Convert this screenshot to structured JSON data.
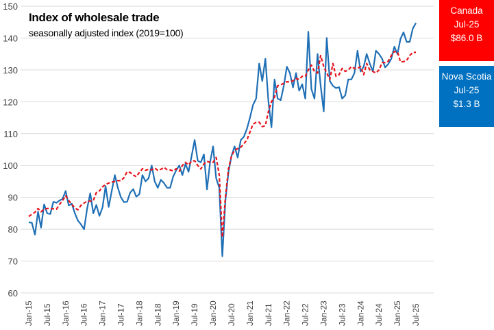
{
  "chart_data": {
    "type": "line",
    "title": "Index of wholesale trade",
    "subtitle": "seasonally adjusted index (2019=100)",
    "xlabel": "",
    "ylabel": "",
    "ylim": [
      60,
      150
    ],
    "yticks": [
      60,
      70,
      80,
      90,
      100,
      110,
      120,
      130,
      140,
      150
    ],
    "grid": true,
    "start_month": "Jan-15",
    "frequency": "monthly",
    "xtick_labels": [
      "Jan-15",
      "Jul-15",
      "Jan-16",
      "Jul-16",
      "Jan-17",
      "Jul-17",
      "Jan-18",
      "Jul-18",
      "Jan-19",
      "Jul-19",
      "Jan-20",
      "Jul-20",
      "Jan-21",
      "Jul-21",
      "Jan-22",
      "Jul-22",
      "Jan-23",
      "Jul-23",
      "Jan-24",
      "Jul-24",
      "Jan-25",
      "Jul-25"
    ],
    "series": [
      {
        "name": "Nova Scotia",
        "color": "#1f6fb5",
        "style": "solid",
        "values": [
          82.2,
          82,
          78.3,
          85.5,
          80.5,
          87.8,
          85,
          84.8,
          88.6,
          88.3,
          89,
          89.5,
          92,
          87.5,
          88,
          85,
          82.7,
          81.5,
          80,
          86.5,
          91.3,
          85,
          87.6,
          84.2,
          86.8,
          93.5,
          87,
          92,
          97,
          93,
          90,
          88.5,
          88.6,
          91.5,
          92.6,
          90.2,
          91,
          97,
          95,
          96,
          100,
          95,
          93,
          95.5,
          94.5,
          93,
          93,
          96.5,
          98.5,
          100,
          97,
          100.5,
          98,
          103,
          108,
          101.5,
          101,
          103.5,
          92.5,
          101,
          106,
          96,
          93,
          71.5,
          89,
          98,
          103,
          106,
          102.5,
          108,
          109,
          111.5,
          115,
          119,
          121,
          132,
          126.5,
          133.5,
          120,
          112,
          127,
          121,
          120.5,
          125,
          131,
          129,
          124.5,
          129,
          123.5,
          125.5,
          121,
          142,
          124,
          121,
          135,
          125,
          117,
          140,
          126.5,
          125,
          124.3,
          124.6,
          121,
          122,
          127,
          127,
          129,
          136,
          129.5,
          131,
          135,
          132,
          129.5,
          136,
          135,
          133.5,
          130.8,
          131.8,
          133.5,
          137.3,
          135,
          139.8,
          141.8,
          138.8,
          138.8,
          143,
          144.7
        ]
      },
      {
        "name": "Canada",
        "color": "#e8141c",
        "style": "dashed",
        "values": [
          84,
          84.7,
          85.3,
          86.5,
          85.5,
          86.3,
          86.5,
          86.5,
          86.4,
          86.3,
          87.8,
          89,
          90.5,
          89,
          87.8,
          86.7,
          86.1,
          87.5,
          88.2,
          88.8,
          88.8,
          89,
          91.5,
          92,
          93.3,
          94,
          94.5,
          94.8,
          95,
          95.3,
          95.2,
          96.2,
          98,
          97.8,
          97,
          96.5,
          97.8,
          99,
          98.5,
          98.8,
          98.6,
          99.2,
          98.5,
          98.8,
          99.4,
          98.7,
          98.6,
          98.3,
          99,
          98.2,
          100,
          101,
          100.2,
          101.4,
          101.5,
          100,
          98.9,
          100.5,
          101.3,
          101,
          101,
          102.5,
          97,
          77.5,
          90,
          99,
          103,
          104.8,
          105.3,
          105.7,
          106.8,
          108,
          110.5,
          113,
          113.5,
          113.6,
          112.2,
          112.5,
          117,
          120,
          121.5,
          125,
          125.3,
          125.8,
          126.3,
          126.2,
          126.6,
          127.3,
          127,
          128,
          128,
          130,
          131.5,
          129.5,
          129,
          134.5,
          131,
          129,
          127,
          132,
          128,
          128.5,
          130.5,
          129.5,
          130,
          131,
          130.5,
          130.5,
          131,
          128.5,
          132,
          130,
          129.5,
          129,
          130,
          132.3,
          132.3,
          132.7,
          134.5,
          135.8,
          135.7,
          132.5,
          132.6,
          133,
          134.5,
          135.5,
          135.5
        ]
      }
    ]
  },
  "legend_boxes": {
    "canada": {
      "name": "Canada",
      "period": "Jul-25",
      "value": "$86.0  B",
      "color": "#ff0000"
    },
    "nova_scotia": {
      "name": "Nova Scotia",
      "period": "Jul-25",
      "value": "$1.3  B",
      "color": "#0070c0"
    }
  }
}
